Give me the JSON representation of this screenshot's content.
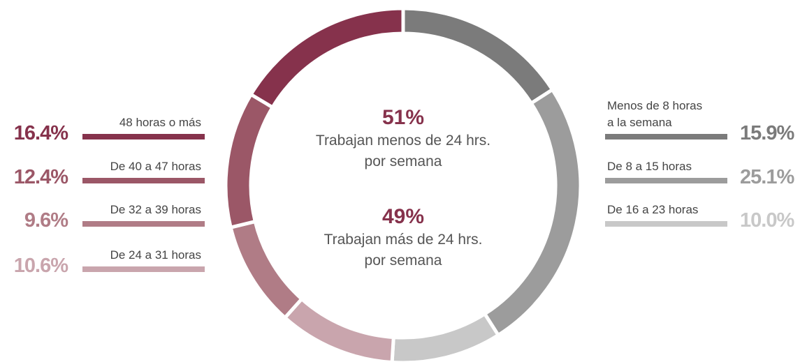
{
  "chart_data": {
    "type": "donut",
    "categories": [
      "Menos de 8 horas a la semana",
      "De 8 a 15 horas",
      "De 16 a 23 horas",
      "De 24 a 31 horas",
      "De 32 a 39 horas",
      "De 40 a 47 horas",
      "48 horas o más"
    ],
    "values": [
      15.9,
      25.1,
      10.0,
      10.6,
      9.6,
      12.4,
      16.4
    ],
    "value_labels": [
      "15.9%",
      "25.1%",
      "10.0%",
      "10.6%",
      "9.6%",
      "12.4%",
      "16.4%"
    ],
    "colors": [
      "#7b7b7b",
      "#9c9c9c",
      "#c8c8c8",
      "#c9a5ad",
      "#b07c86",
      "#9b5767",
      "#86324c"
    ],
    "center_labels": [
      {
        "label": "51%",
        "text": [
          "Trabajan menos de 24 hrs.",
          "por semana"
        ]
      },
      {
        "label": "49%",
        "text": [
          "Trabajan más de 24 hrs.",
          "por semana"
        ]
      }
    ]
  }
}
